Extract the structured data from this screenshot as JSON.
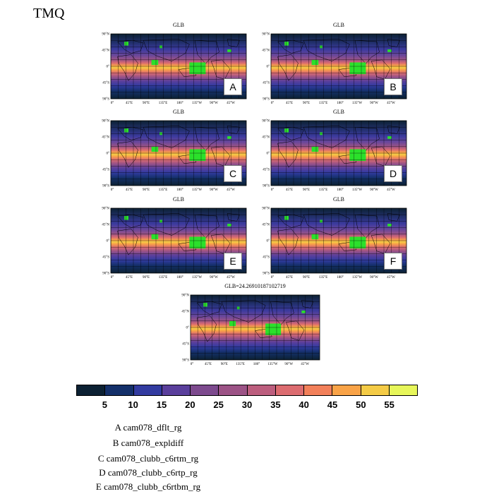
{
  "title": "TMQ",
  "panels": [
    {
      "title": "GLB",
      "tag": "A"
    },
    {
      "title": "GLB",
      "tag": "B"
    },
    {
      "title": "GLB",
      "tag": "C"
    },
    {
      "title": "GLB",
      "tag": "D"
    },
    {
      "title": "GLB",
      "tag": "E"
    },
    {
      "title": "GLB",
      "tag": "F"
    },
    {
      "title": "GLB=24.26910187102719",
      "tag": ""
    }
  ],
  "y_ticks": [
    "90°N",
    "45°N",
    "0°",
    "45°S",
    "90°S"
  ],
  "x_ticks": [
    "0°",
    "45°E",
    "90°E",
    "135°E",
    "180°",
    "135°W",
    "90°W",
    "45°W"
  ],
  "colorbar": {
    "colors": [
      "#0c2133",
      "#14306a",
      "#323ba0",
      "#5a3f9c",
      "#7d4a8e",
      "#9c5386",
      "#bc5e7e",
      "#dc6c70",
      "#f2805a",
      "#f9a347",
      "#f4cb46",
      "#e7f65a"
    ],
    "labels": [
      "5",
      "10",
      "15",
      "20",
      "25",
      "30",
      "35",
      "40",
      "45",
      "50",
      "55"
    ]
  },
  "legend": [
    "A  cam078_dflt_rg",
    "B  cam078_expldiff",
    "C  cam078_clubb_c6rtm_rg",
    "D  cam078_clubb_c6rtp_rg",
    "E  cam078_clubb_c6rtbm_rg"
  ]
}
